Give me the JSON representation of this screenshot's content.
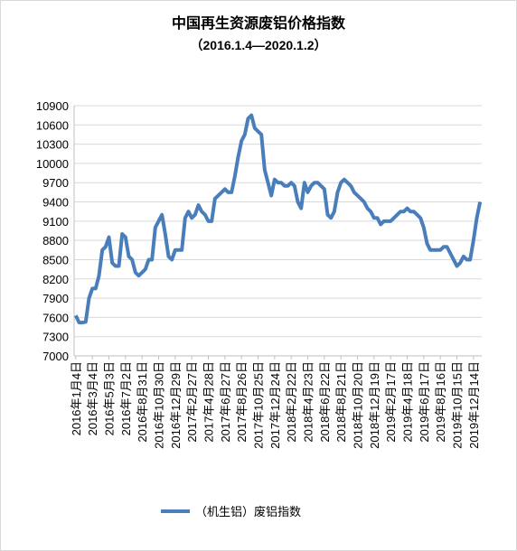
{
  "chart_data": {
    "type": "line",
    "title": "中国再生资源废铝价格指数",
    "subtitle": "（2016.1.4—2020.1.2）",
    "categories": [
      "2016年1月4日",
      null,
      null,
      null,
      null,
      "2016年3月4日",
      null,
      null,
      null,
      null,
      "2016年5月3日",
      null,
      null,
      null,
      null,
      "2016年7月2日",
      null,
      null,
      null,
      null,
      "2016年8月31日",
      null,
      null,
      null,
      null,
      "2016年10月30日",
      null,
      null,
      null,
      null,
      "2016年12月29日",
      null,
      null,
      null,
      null,
      "2017年2月27日",
      null,
      null,
      null,
      null,
      "2017年4月28日",
      null,
      null,
      null,
      null,
      "2017年6月27日",
      null,
      null,
      null,
      null,
      "2017年8月26日",
      null,
      null,
      null,
      null,
      "2017年10月25日",
      null,
      null,
      null,
      null,
      "2017年12月24日",
      null,
      null,
      null,
      null,
      "2018年2月22日",
      null,
      null,
      null,
      null,
      "2018年4月23日",
      null,
      null,
      null,
      null,
      "2018年6月22日",
      null,
      null,
      null,
      null,
      "2018年8月21日",
      null,
      null,
      null,
      null,
      "2018年10月20日",
      null,
      null,
      null,
      null,
      "2018年12月19日",
      null,
      null,
      null,
      null,
      "2019年2月17日",
      null,
      null,
      null,
      null,
      "2019年4月18日",
      null,
      null,
      null,
      null,
      "2019年6月17日",
      null,
      null,
      null,
      null,
      "2019年8月16日",
      null,
      null,
      null,
      null,
      "2019年10月15日",
      null,
      null,
      null,
      null,
      "2019年12月14日",
      null,
      null
    ],
    "series": [
      {
        "name": "（机生铝）废铝指数",
        "color": "#4a7ebb",
        "values": [
          7630,
          7520,
          7520,
          7530,
          7900,
          8050,
          8050,
          8250,
          8650,
          8700,
          8850,
          8450,
          8400,
          8400,
          8900,
          8850,
          8550,
          8500,
          8300,
          8250,
          8300,
          8350,
          8500,
          8500,
          9000,
          9100,
          9200,
          8900,
          8550,
          8500,
          8650,
          8650,
          8650,
          9150,
          9250,
          9150,
          9200,
          9350,
          9250,
          9200,
          9100,
          9100,
          9450,
          9500,
          9550,
          9600,
          9550,
          9550,
          9800,
          10100,
          10350,
          10450,
          10700,
          10750,
          10550,
          10500,
          10450,
          9900,
          9700,
          9500,
          9750,
          9700,
          9700,
          9650,
          9650,
          9700,
          9650,
          9400,
          9300,
          9700,
          9550,
          9650,
          9700,
          9700,
          9650,
          9600,
          9200,
          9150,
          9250,
          9550,
          9700,
          9750,
          9700,
          9650,
          9550,
          9500,
          9450,
          9400,
          9300,
          9250,
          9150,
          9150,
          9050,
          9100,
          9100,
          9100,
          9150,
          9200,
          9250,
          9250,
          9300,
          9250,
          9250,
          9200,
          9150,
          9000,
          8750,
          8650,
          8650,
          8650,
          8650,
          8700,
          8700,
          8600,
          8500,
          8400,
          8450,
          8550,
          8500,
          8500,
          8800,
          9150,
          9400
        ]
      }
    ],
    "ylim": [
      7000,
      10900
    ],
    "yticks": [
      7000,
      7300,
      7600,
      7900,
      8200,
      8500,
      8800,
      9100,
      9400,
      9700,
      10000,
      10300,
      10600,
      10900
    ],
    "grid": true,
    "legend": "bottom"
  }
}
